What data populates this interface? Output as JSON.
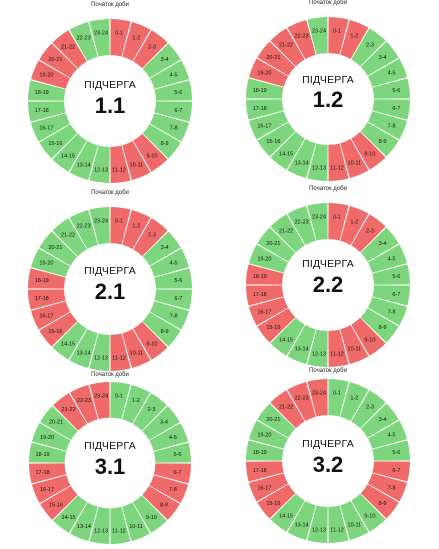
{
  "colors": {
    "on": "#7dd67d",
    "off": "#f06a6a"
  },
  "groups": [
    {
      "caption": "Початок доби",
      "title": "ПІДЧЕРГА",
      "number": "1.1",
      "segments": [
        {
          "label": "0-1",
          "status": "off"
        },
        {
          "label": "1-2",
          "status": "off"
        },
        {
          "label": "2-3",
          "status": "off"
        },
        {
          "label": "3-4",
          "status": "on"
        },
        {
          "label": "4-5",
          "status": "on"
        },
        {
          "label": "5-6",
          "status": "on"
        },
        {
          "label": "6-7",
          "status": "on"
        },
        {
          "label": "7-8",
          "status": "on"
        },
        {
          "label": "8-9",
          "status": "on"
        },
        {
          "label": "9-10",
          "status": "off"
        },
        {
          "label": "10-11",
          "status": "off"
        },
        {
          "label": "11-12",
          "status": "off"
        },
        {
          "label": "12-13",
          "status": "on"
        },
        {
          "label": "13-14",
          "status": "on"
        },
        {
          "label": "14-15",
          "status": "on"
        },
        {
          "label": "15-16",
          "status": "on"
        },
        {
          "label": "16-17",
          "status": "on"
        },
        {
          "label": "17-18",
          "status": "on"
        },
        {
          "label": "18-19",
          "status": "on"
        },
        {
          "label": "19-20",
          "status": "off"
        },
        {
          "label": "20-21",
          "status": "off"
        },
        {
          "label": "21-22",
          "status": "off"
        },
        {
          "label": "22-23",
          "status": "on"
        },
        {
          "label": "23-24",
          "status": "on"
        }
      ]
    },
    {
      "caption": "Початок доби",
      "title": "ПІДЧЕРГА",
      "number": "1.2",
      "segments": [
        {
          "label": "0-1",
          "status": "off"
        },
        {
          "label": "1-2",
          "status": "off"
        },
        {
          "label": "2-3",
          "status": "on"
        },
        {
          "label": "3-4",
          "status": "on"
        },
        {
          "label": "4-5",
          "status": "on"
        },
        {
          "label": "5-6",
          "status": "on"
        },
        {
          "label": "6-7",
          "status": "on"
        },
        {
          "label": "7-8",
          "status": "on"
        },
        {
          "label": "8-9",
          "status": "on"
        },
        {
          "label": "9-10",
          "status": "off"
        },
        {
          "label": "10-11",
          "status": "off"
        },
        {
          "label": "11-12",
          "status": "off"
        },
        {
          "label": "12-13",
          "status": "on"
        },
        {
          "label": "13-14",
          "status": "on"
        },
        {
          "label": "14-15",
          "status": "on"
        },
        {
          "label": "15-16",
          "status": "on"
        },
        {
          "label": "16-17",
          "status": "on"
        },
        {
          "label": "17-18",
          "status": "on"
        },
        {
          "label": "18-19",
          "status": "on"
        },
        {
          "label": "19-20",
          "status": "off"
        },
        {
          "label": "20-21",
          "status": "off"
        },
        {
          "label": "21-22",
          "status": "off"
        },
        {
          "label": "22-23",
          "status": "off"
        },
        {
          "label": "23-24",
          "status": "on"
        }
      ]
    },
    {
      "caption": "Початок доби",
      "title": "ПІДЧЕРГА",
      "number": "2.1",
      "segments": [
        {
          "label": "0-1",
          "status": "off"
        },
        {
          "label": "1-2",
          "status": "off"
        },
        {
          "label": "2-3",
          "status": "off"
        },
        {
          "label": "3-4",
          "status": "on"
        },
        {
          "label": "4-5",
          "status": "on"
        },
        {
          "label": "5-6",
          "status": "on"
        },
        {
          "label": "6-7",
          "status": "on"
        },
        {
          "label": "7-8",
          "status": "on"
        },
        {
          "label": "8-9",
          "status": "on"
        },
        {
          "label": "9-10",
          "status": "off"
        },
        {
          "label": "10-11",
          "status": "off"
        },
        {
          "label": "11-12",
          "status": "off"
        },
        {
          "label": "12-13",
          "status": "on"
        },
        {
          "label": "13-14",
          "status": "on"
        },
        {
          "label": "14-15",
          "status": "on"
        },
        {
          "label": "15-16",
          "status": "off"
        },
        {
          "label": "16-17",
          "status": "off"
        },
        {
          "label": "17-18",
          "status": "off"
        },
        {
          "label": "18-19",
          "status": "off"
        },
        {
          "label": "19-20",
          "status": "on"
        },
        {
          "label": "20-21",
          "status": "on"
        },
        {
          "label": "21-22",
          "status": "on"
        },
        {
          "label": "22-23",
          "status": "on"
        },
        {
          "label": "23-24",
          "status": "on"
        }
      ]
    },
    {
      "caption": "Початок доби",
      "title": "ПІДЧЕРГА",
      "number": "2.2",
      "segments": [
        {
          "label": "0-1",
          "status": "off"
        },
        {
          "label": "1-2",
          "status": "off"
        },
        {
          "label": "2-3",
          "status": "off"
        },
        {
          "label": "3-4",
          "status": "on"
        },
        {
          "label": "4-5",
          "status": "on"
        },
        {
          "label": "5-6",
          "status": "on"
        },
        {
          "label": "6-7",
          "status": "on"
        },
        {
          "label": "7-8",
          "status": "on"
        },
        {
          "label": "8-9",
          "status": "on"
        },
        {
          "label": "9-10",
          "status": "off"
        },
        {
          "label": "10-11",
          "status": "off"
        },
        {
          "label": "11-12",
          "status": "off"
        },
        {
          "label": "12-13",
          "status": "on"
        },
        {
          "label": "13-14",
          "status": "on"
        },
        {
          "label": "14-15",
          "status": "on"
        },
        {
          "label": "15-16",
          "status": "off"
        },
        {
          "label": "16-17",
          "status": "off"
        },
        {
          "label": "17-18",
          "status": "off"
        },
        {
          "label": "18-19",
          "status": "off"
        },
        {
          "label": "19-20",
          "status": "on"
        },
        {
          "label": "20-21",
          "status": "on"
        },
        {
          "label": "21-22",
          "status": "on"
        },
        {
          "label": "22-23",
          "status": "on"
        },
        {
          "label": "23-24",
          "status": "on"
        }
      ]
    },
    {
      "caption": "Початок доби",
      "title": "ПІДЧЕРГА",
      "number": "3.1",
      "segments": [
        {
          "label": "0-1",
          "status": "on"
        },
        {
          "label": "1-2",
          "status": "on"
        },
        {
          "label": "2-3",
          "status": "on"
        },
        {
          "label": "3-4",
          "status": "on"
        },
        {
          "label": "4-5",
          "status": "on"
        },
        {
          "label": "5-6",
          "status": "on"
        },
        {
          "label": "6-7",
          "status": "off"
        },
        {
          "label": "7-8",
          "status": "off"
        },
        {
          "label": "8-9",
          "status": "off"
        },
        {
          "label": "9-10",
          "status": "on"
        },
        {
          "label": "10-11",
          "status": "on"
        },
        {
          "label": "11-12",
          "status": "on"
        },
        {
          "label": "12-13",
          "status": "on"
        },
        {
          "label": "13-14",
          "status": "on"
        },
        {
          "label": "14-15",
          "status": "on"
        },
        {
          "label": "15-16",
          "status": "off"
        },
        {
          "label": "16-17",
          "status": "off"
        },
        {
          "label": "17-18",
          "status": "off"
        },
        {
          "label": "18-19",
          "status": "on"
        },
        {
          "label": "19-20",
          "status": "on"
        },
        {
          "label": "20-21",
          "status": "on"
        },
        {
          "label": "21-22",
          "status": "off"
        },
        {
          "label": "22-23",
          "status": "off"
        },
        {
          "label": "23-24",
          "status": "off"
        }
      ]
    },
    {
      "caption": "Початок доби",
      "title": "ПІДЧЕРГА",
      "number": "3.2",
      "segments": [
        {
          "label": "0-1",
          "status": "on"
        },
        {
          "label": "1-2",
          "status": "on"
        },
        {
          "label": "2-3",
          "status": "on"
        },
        {
          "label": "3-4",
          "status": "on"
        },
        {
          "label": "4-5",
          "status": "on"
        },
        {
          "label": "5-6",
          "status": "on"
        },
        {
          "label": "6-7",
          "status": "off"
        },
        {
          "label": "7-8",
          "status": "off"
        },
        {
          "label": "8-9",
          "status": "off"
        },
        {
          "label": "9-10",
          "status": "on"
        },
        {
          "label": "10-11",
          "status": "on"
        },
        {
          "label": "11-12",
          "status": "on"
        },
        {
          "label": "12-13",
          "status": "on"
        },
        {
          "label": "13-14",
          "status": "on"
        },
        {
          "label": "14-15",
          "status": "on"
        },
        {
          "label": "15-16",
          "status": "off"
        },
        {
          "label": "16-17",
          "status": "off"
        },
        {
          "label": "17-18",
          "status": "off"
        },
        {
          "label": "18-19",
          "status": "on"
        },
        {
          "label": "19-20",
          "status": "on"
        },
        {
          "label": "20-21",
          "status": "on"
        },
        {
          "label": "21-22",
          "status": "off"
        },
        {
          "label": "22-23",
          "status": "off"
        },
        {
          "label": "23-24",
          "status": "off"
        }
      ]
    }
  ]
}
